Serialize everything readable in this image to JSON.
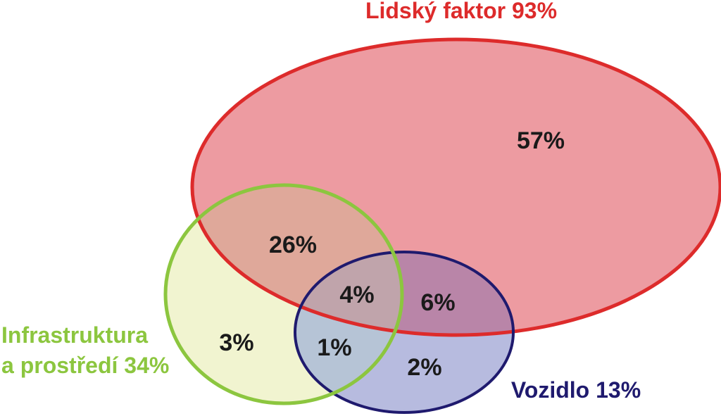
{
  "sets": {
    "human": {
      "label": "Lidský faktor 93%",
      "stroke": "#dd2b2b",
      "fill": "#e87f87"
    },
    "infrastructure": {
      "label_line1": "Infrastruktura",
      "label_line2": "a prostředí 34%",
      "stroke": "#8cc63f",
      "fill": "#eef2c8"
    },
    "vehicle": {
      "label": "Vozidlo 13%",
      "stroke": "#1f1a6e",
      "fill": "#9fa4d4"
    }
  },
  "regions": {
    "human_only": "57%",
    "human_infrastructure": "26%",
    "all_three": "4%",
    "human_vehicle": "6%",
    "infrastructure_only": "3%",
    "infrastructure_vehicle": "1%",
    "vehicle_only": "2%"
  }
}
